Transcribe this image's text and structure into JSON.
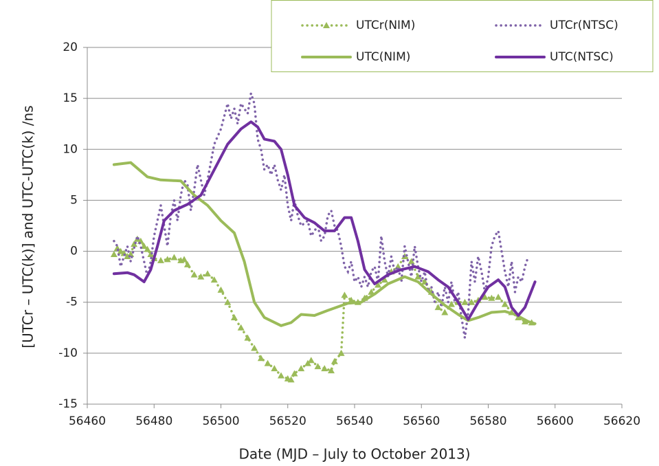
{
  "chart_data": {
    "type": "line",
    "x_label": "Date (MJD – July to October 2013)",
    "y_label": "[UTCr – UTC(k)] and UTC-UTC(k)  /ns",
    "xlim": [
      56460,
      56620
    ],
    "xticks": [
      56460,
      56480,
      56500,
      56520,
      56540,
      56560,
      56580,
      56600,
      56620
    ],
    "ylim": [
      -15,
      20
    ],
    "yticks": [
      -15,
      -10,
      -5,
      0,
      5,
      10,
      15,
      20
    ],
    "grid": true,
    "legend": "top-right",
    "series": [
      {
        "name": "UTCr(NIM)",
        "color": "#9bbb59",
        "style": "dotted",
        "marker": "triangle",
        "x": [
          56468,
          56469,
          56470,
          56471,
          56472,
          56473,
          56474,
          56475,
          56476,
          56477,
          56478,
          56479,
          56480,
          56482,
          56484,
          56486,
          56488,
          56489,
          56490,
          56492,
          56494,
          56496,
          56498,
          56500,
          56502,
          56504,
          56506,
          56508,
          56510,
          56512,
          56514,
          56516,
          56518,
          56520,
          56521,
          56522,
          56524,
          56526,
          56527,
          56529,
          56531,
          56533,
          56534,
          56536,
          56537,
          56539,
          56541,
          56543,
          56545,
          56547,
          56549,
          56551,
          56553,
          56555,
          56557,
          56559,
          56561,
          56563,
          56565,
          56567,
          56569,
          56571,
          56573,
          56575,
          56577,
          56579,
          56581,
          56583,
          56585,
          56587,
          56589,
          56591,
          56593
        ],
        "values": [
          -0.3,
          0.3,
          0,
          -0.2,
          -0.5,
          -0.3,
          0.7,
          1.2,
          1.0,
          0.5,
          0.2,
          -0.3,
          -0.7,
          -0.9,
          -0.8,
          -0.6,
          -0.9,
          -0.8,
          -1.3,
          -2.3,
          -2.5,
          -2.2,
          -2.8,
          -3.8,
          -5.0,
          -6.5,
          -7.5,
          -8.5,
          -9.5,
          -10.5,
          -11.0,
          -11.5,
          -12.2,
          -12.5,
          -12.6,
          -12.0,
          -11.5,
          -11.0,
          -10.7,
          -11.3,
          -11.5,
          -11.7,
          -10.8,
          -10.0,
          -4.3,
          -4.8,
          -5.0,
          -4.6,
          -4.0,
          -3.3,
          -2.8,
          -2.0,
          -1.5,
          -0.5,
          -1.0,
          -2.5,
          -3.0,
          -4.0,
          -5.5,
          -6.0,
          -5.2,
          -5.0,
          -5.0,
          -5.0,
          -4.8,
          -4.5,
          -4.6,
          -4.5,
          -5.2,
          -6.0,
          -6.5,
          -6.9,
          -7.0
        ]
      },
      {
        "name": "UTCr(NTSC)",
        "color": "#7f63a8",
        "style": "dotted",
        "x": [
          56468,
          56469,
          56470,
          56471,
          56472,
          56473,
          56474,
          56475,
          56476,
          56477,
          56478,
          56479,
          56480,
          56481,
          56482,
          56483,
          56484,
          56485,
          56486,
          56487,
          56488,
          56489,
          56490,
          56491,
          56492,
          56493,
          56494,
          56495,
          56496,
          56498,
          56500,
          56502,
          56503,
          56504,
          56505,
          56506,
          56508,
          56509,
          56510,
          56511,
          56512,
          56513,
          56514,
          56515,
          56516,
          56517,
          56518,
          56519,
          56520,
          56521,
          56522,
          56523,
          56524,
          56526,
          56527,
          56529,
          56530,
          56531,
          56532,
          56533,
          56534,
          56535,
          56536,
          56537,
          56538,
          56539,
          56540,
          56541,
          56542,
          56543,
          56544,
          56545,
          56546,
          56547,
          56548,
          56549,
          56550,
          56551,
          56552,
          56553,
          56554,
          56555,
          56556,
          56557,
          56558,
          56559,
          56560,
          56561,
          56562,
          56563,
          56564,
          56565,
          56566,
          56567,
          56568,
          56569,
          56570,
          56571,
          56572,
          56573,
          56574,
          56575,
          56576,
          56577,
          56578,
          56579,
          56580,
          56581,
          56582,
          56583,
          56584,
          56585,
          56586,
          56587,
          56588,
          56589,
          56590,
          56591,
          56592
        ],
        "values": [
          1.0,
          0.5,
          -1.5,
          -0.5,
          0.5,
          -1.0,
          0.3,
          1.5,
          0.5,
          -1.0,
          -2.5,
          -1.0,
          1.5,
          3.0,
          4.5,
          2.5,
          0.5,
          3.5,
          5.0,
          3.0,
          5.5,
          7.0,
          6.5,
          4.0,
          6.0,
          8.5,
          7.0,
          5.5,
          7.0,
          10.5,
          12.0,
          14.5,
          13.0,
          14.0,
          12.5,
          14.5,
          13.5,
          15.5,
          14.5,
          11.0,
          10.0,
          8.0,
          8.5,
          7.5,
          8.5,
          7.0,
          6.0,
          7.5,
          4.5,
          3.0,
          5.0,
          3.5,
          2.5,
          3.0,
          1.5,
          2.5,
          1.0,
          1.5,
          3.5,
          4.0,
          2.5,
          2.0,
          0.5,
          -1.5,
          -2.0,
          -1.0,
          -3.0,
          -2.5,
          -3.5,
          -2.5,
          -3.5,
          -2.0,
          -1.5,
          -3.0,
          1.5,
          -1.0,
          -2.5,
          -0.5,
          -2.0,
          -1.5,
          -3.0,
          0.5,
          -1.0,
          -2.5,
          0.5,
          -1.5,
          -3.0,
          -2.0,
          -4.0,
          -3.5,
          -5.0,
          -4.0,
          -5.5,
          -3.5,
          -5.0,
          -3.0,
          -5.0,
          -4.0,
          -6.5,
          -8.5,
          -6.0,
          -1.0,
          -3.0,
          -0.5,
          -2.0,
          -4.0,
          -2.5,
          0.5,
          1.5,
          2.0,
          0,
          -2.0,
          -3.5,
          -1.0,
          -4.0,
          -2.5,
          -3.0,
          -1.5,
          -0.5
        ]
      },
      {
        "name": "UTC(NIM)",
        "color": "#9bbb59",
        "style": "solid",
        "x": [
          56468,
          56473,
          56478,
          56482,
          56488,
          56492,
          56496,
          56500,
          56504,
          56507,
          56510,
          56513,
          56518,
          56521,
          56524,
          56528,
          56532,
          56538,
          56542,
          56546,
          56550,
          56555,
          56559,
          56563,
          56567,
          56571,
          56574,
          56577,
          56581,
          56585,
          56588,
          56592,
          56594
        ],
        "values": [
          8.5,
          8.7,
          7.3,
          7.0,
          6.9,
          5.5,
          4.5,
          3.0,
          1.8,
          -1.0,
          -5.0,
          -6.5,
          -7.3,
          -7.0,
          -6.2,
          -6.3,
          -5.8,
          -5.1,
          -5.0,
          -4.2,
          -3.2,
          -2.5,
          -3.0,
          -4.2,
          -5.3,
          -6.2,
          -6.8,
          -6.5,
          -6.0,
          -5.9,
          -6.2,
          -6.9,
          -7.1
        ]
      },
      {
        "name": "UTC(NTSC)",
        "color": "#7030a0",
        "style": "solid",
        "x": [
          56468,
          56472,
          56474,
          56477,
          56479,
          56481,
          56483,
          56486,
          56490,
          56494,
          56498,
          56502,
          56506,
          56509,
          56511,
          56513,
          56516,
          56518,
          56520,
          56522,
          56525,
          56528,
          56531,
          56534,
          56537,
          56539,
          56541,
          56543,
          56546,
          56550,
          56554,
          56558,
          56562,
          56565,
          56568,
          56571,
          56574,
          56577,
          56580,
          56583,
          56585,
          56587,
          56589,
          56591,
          56594
        ],
        "values": [
          -2.2,
          -2.1,
          -2.3,
          -3.0,
          -1.8,
          0.5,
          3.0,
          4.0,
          4.6,
          5.5,
          8.0,
          10.5,
          12.0,
          12.7,
          12.2,
          11.0,
          10.8,
          10.0,
          7.5,
          4.5,
          3.3,
          2.8,
          2.0,
          2.0,
          3.3,
          3.3,
          1.0,
          -1.8,
          -3.2,
          -2.3,
          -1.8,
          -1.5,
          -2.0,
          -2.8,
          -3.5,
          -5.0,
          -6.7,
          -5.0,
          -3.5,
          -2.8,
          -3.5,
          -5.5,
          -6.3,
          -5.5,
          -3.0
        ]
      }
    ]
  }
}
